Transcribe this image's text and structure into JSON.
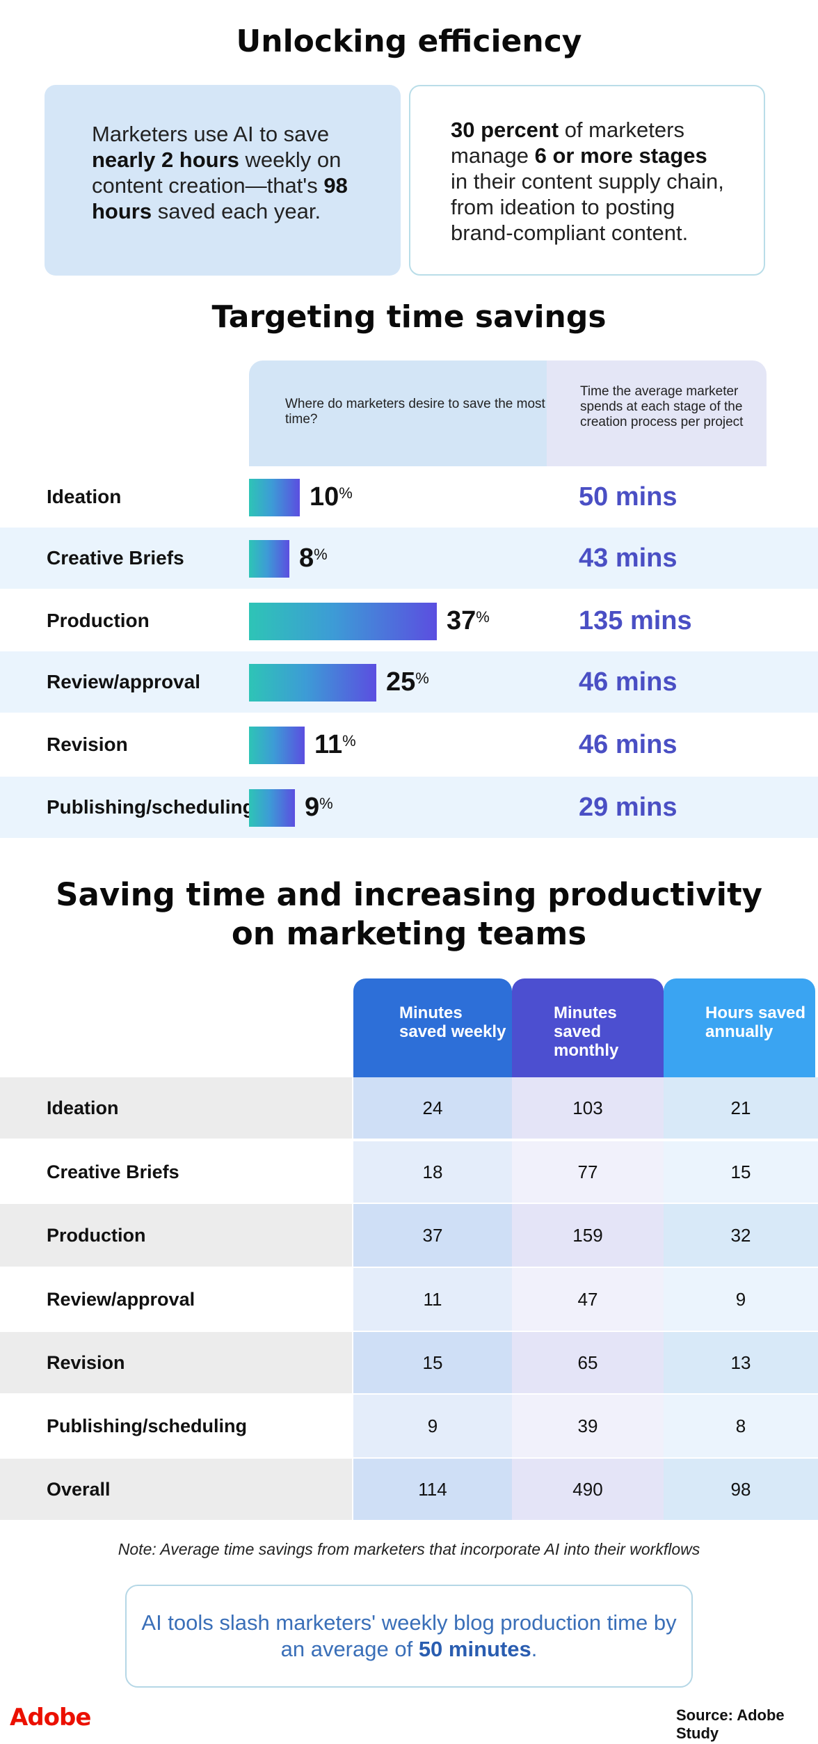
{
  "titles": {
    "main": "Unlocking efficiency",
    "targeting": "Targeting time savings",
    "saving_line1": "Saving time and increasing productivity",
    "saving_line2": "on marketing teams"
  },
  "stat_left": {
    "t1": "Marketers use AI to save ",
    "b1": "nearly 2 hours",
    "t2": " weekly on content creation—that's ",
    "b2": "98 hours",
    "t3": " saved each year."
  },
  "stat_right": {
    "b1": "30 percent",
    "t1": " of marketers manage ",
    "b2": "6 or more stages",
    "t2": " in their content supply chain, from ideation to posting brand-compliant content."
  },
  "column_headers": {
    "desire": "Where do marketers desire to save the most time?",
    "time": "Time the average marketer spends at each stage of the creation process per project"
  },
  "chart_data": {
    "type": "bar",
    "title": "Targeting time savings",
    "categories": [
      "Ideation",
      "Creative Briefs",
      "Production",
      "Review/approval",
      "Revision",
      "Publishing/scheduling"
    ],
    "series": [
      {
        "name": "Where do marketers desire to save the most time?",
        "values": [
          10,
          8,
          37,
          25,
          11,
          9
        ],
        "unit": "%"
      },
      {
        "name": "Time the average marketer spends at each stage of the creation process per project",
        "values": [
          50,
          43,
          135,
          46,
          46,
          29
        ],
        "unit": "mins"
      }
    ],
    "percent_labels": [
      "10",
      "8",
      "37",
      "25",
      "11",
      "9"
    ],
    "percent_sign": "%",
    "minutes_labels": [
      "50 mins",
      "43 mins",
      "135 mins",
      "46 mins",
      "46 mins",
      "29 mins"
    ]
  },
  "productivity_table": {
    "headers": [
      "Minutes saved weekly",
      "Minutes saved monthly",
      "Hours saved annually"
    ],
    "rows": [
      {
        "label": "Ideation",
        "weekly": "24",
        "monthly": "103",
        "annual": "21"
      },
      {
        "label": "Creative Briefs",
        "weekly": "18",
        "monthly": "77",
        "annual": "15"
      },
      {
        "label": "Production",
        "weekly": "37",
        "monthly": "159",
        "annual": "32"
      },
      {
        "label": "Review/approval",
        "weekly": "11",
        "monthly": "47",
        "annual": "9"
      },
      {
        "label": "Revision",
        "weekly": "15",
        "monthly": "65",
        "annual": "13"
      },
      {
        "label": "Publishing/scheduling",
        "weekly": "9",
        "monthly": "39",
        "annual": "8"
      },
      {
        "label": "Overall",
        "weekly": "114",
        "monthly": "490",
        "annual": "98"
      }
    ]
  },
  "note": "Note: Average time savings from marketers that incorporate AI into their workflows",
  "callout": {
    "t1": "AI tools slash marketers' weekly blog production time by an average of ",
    "b1": "50 minutes",
    "t2": "."
  },
  "logo": "Adobe",
  "source": "Source: Adobe Study",
  "colors": {
    "accent_purple": "#4a4fc4",
    "adobe_red": "#eb1000",
    "bar_gradient_start": "#2ec4b6",
    "bar_gradient_end": "#5b4ee0",
    "header_weekly": "#2d6fd8",
    "header_monthly": "#4c4fd0",
    "header_annual": "#3aa4f2"
  }
}
